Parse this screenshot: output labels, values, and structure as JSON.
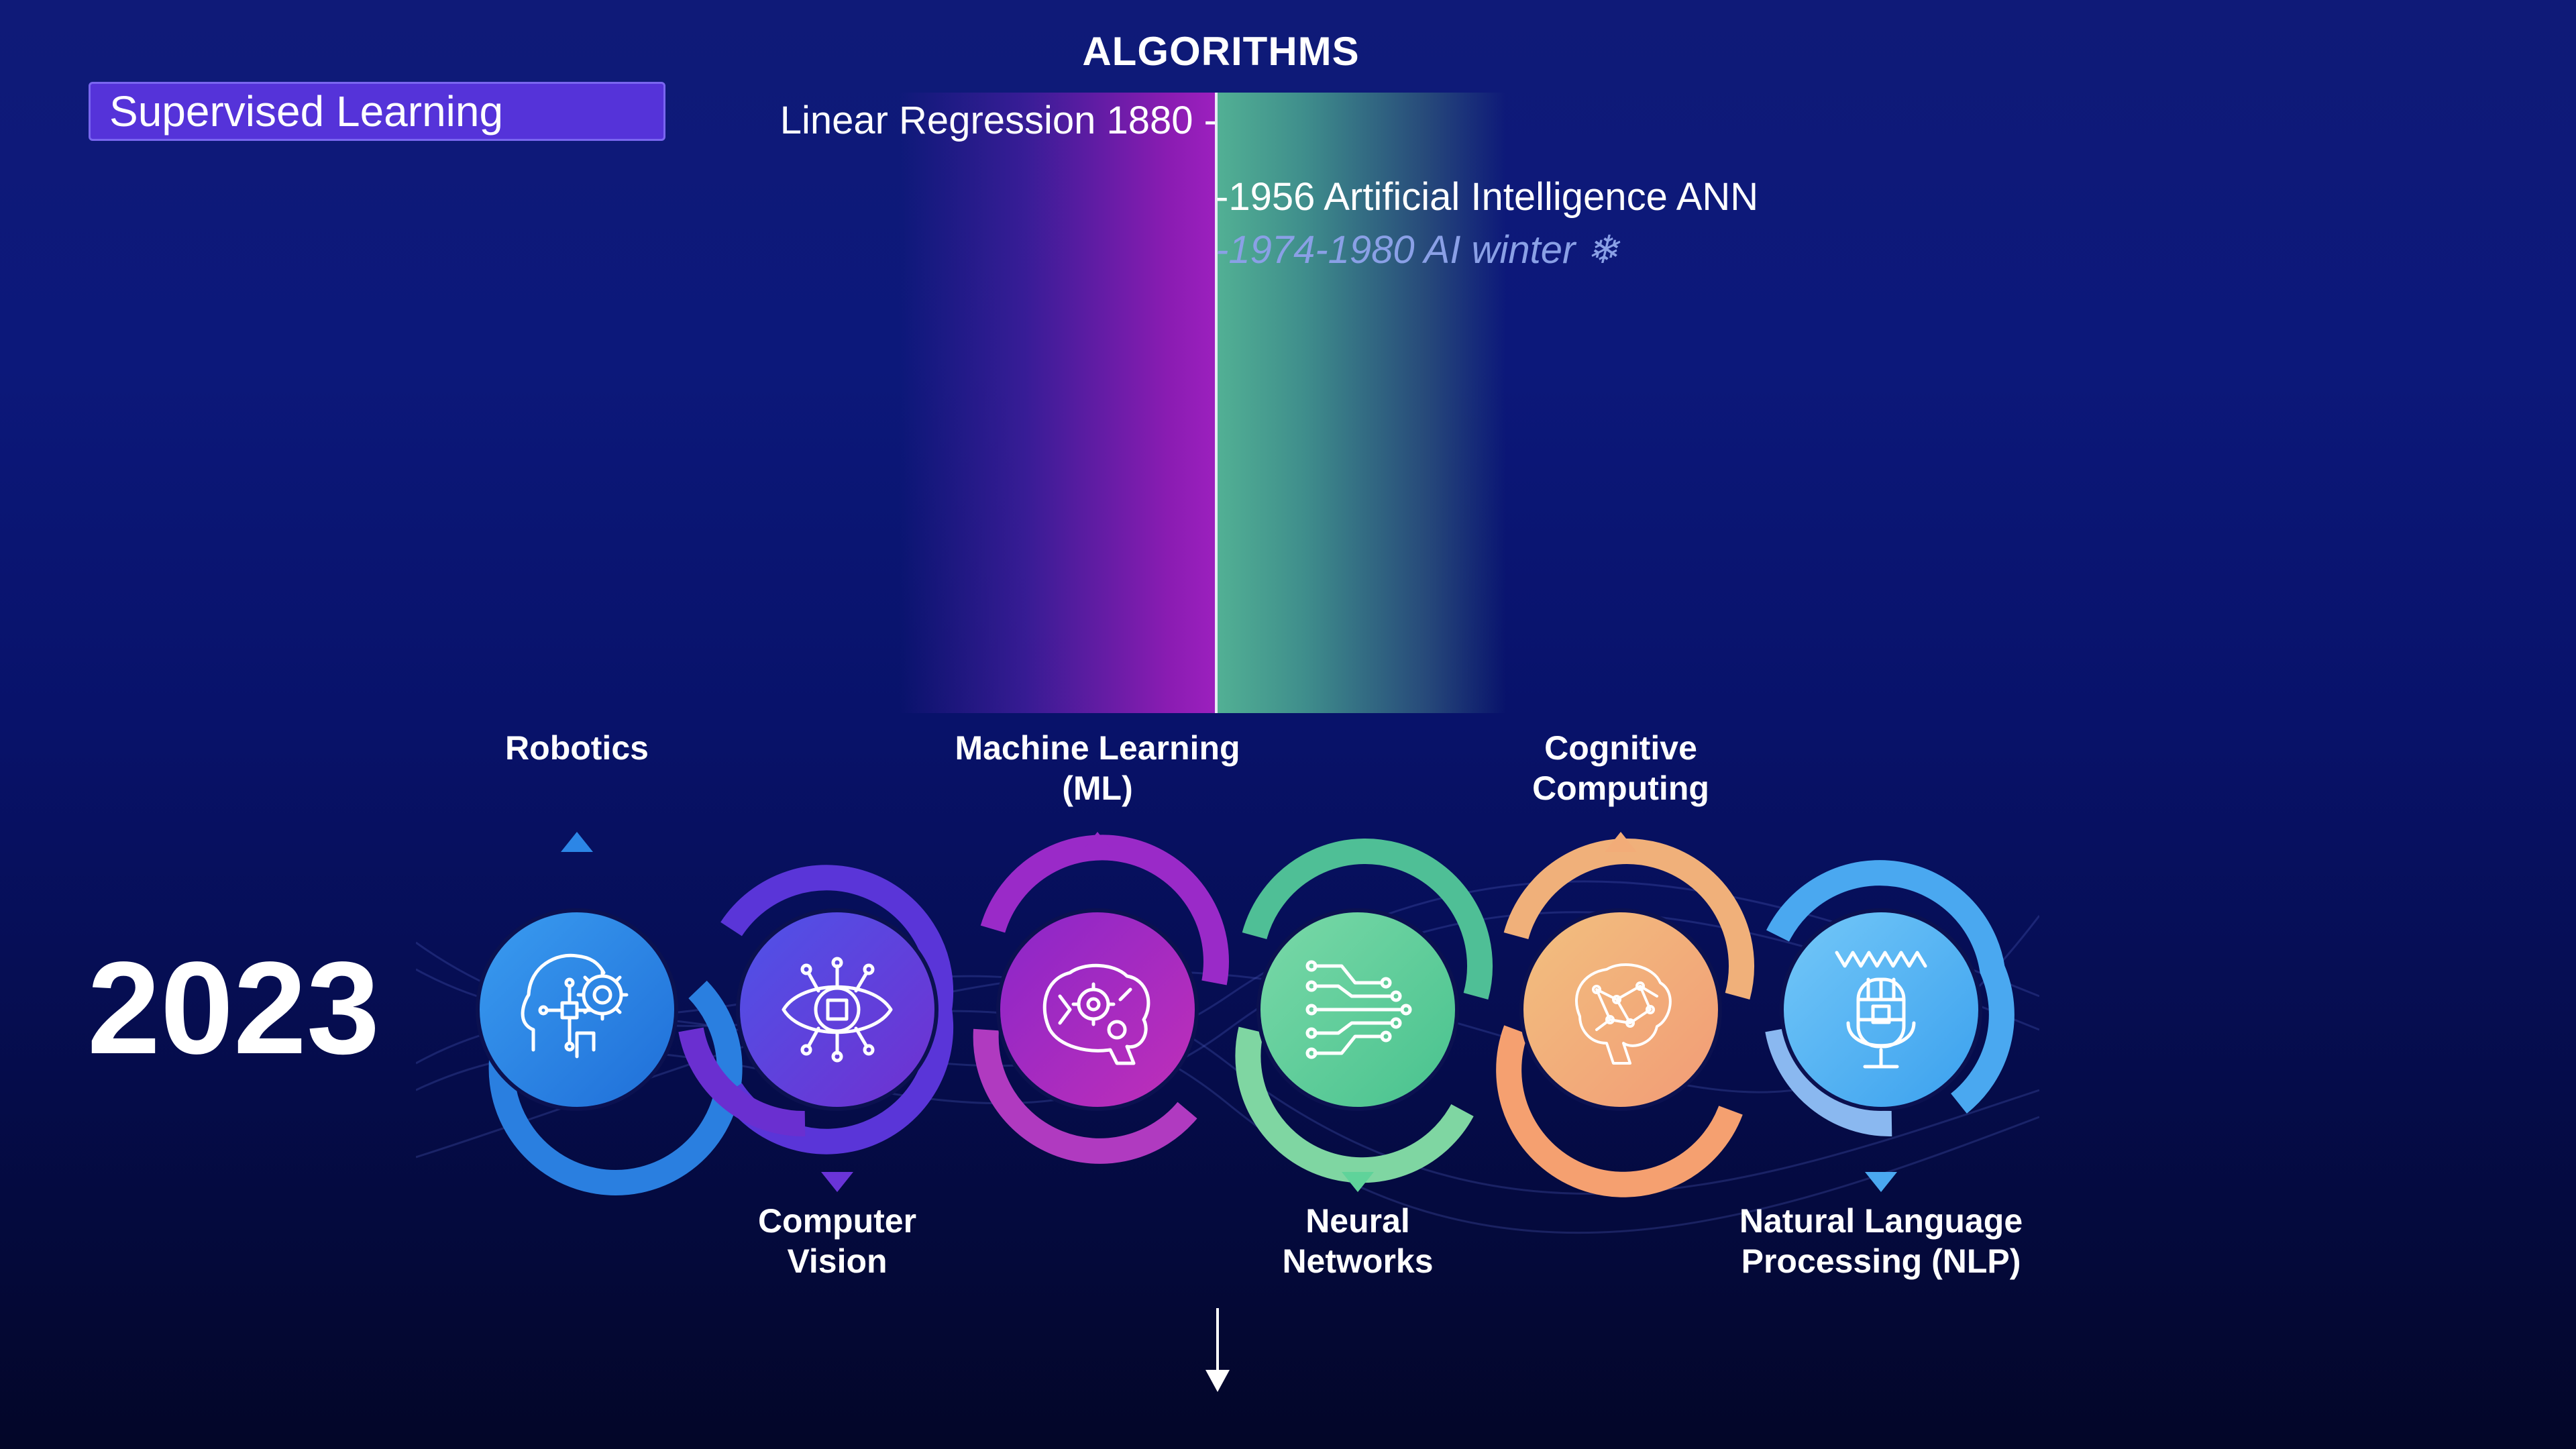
{
  "header": {
    "title": "ALGORITHMS"
  },
  "badge": {
    "label": "Supervised Learning"
  },
  "timeline": {
    "left": "Linear Regression 1880 -",
    "right_1": "-1956 Artificial Intelligence ANN",
    "right_2": "-1974-1980 AI winter ❄"
  },
  "year": "2023",
  "nodes": [
    {
      "label": "Robotics",
      "icon": "robot-head-icon",
      "color": "#1f8ee0"
    },
    {
      "label": "Computer\nVision",
      "icon": "eye-chip-icon",
      "color": "#5a35d8"
    },
    {
      "label": "Machine Learning\n(ML)",
      "icon": "brain-gear-icon",
      "color": "#9a22c0"
    },
    {
      "label": "Neural\nNetworks",
      "icon": "circuit-icon",
      "color": "#5fd39a"
    },
    {
      "label": "Cognitive\nComputing",
      "icon": "brain-network-icon",
      "color": "#f7a97a"
    },
    {
      "label": "Natural Language\nProcessing (NLP)",
      "icon": "microphone-icon",
      "color": "#5ab8f2"
    }
  ],
  "colors": {
    "background_top": "#0f1a78",
    "background_bottom": "#030628",
    "badge": "#5533d9",
    "band_purple": "#9c20be",
    "band_teal": "#52b094"
  },
  "icons": {
    "down_arrow": "arrow-down-icon"
  }
}
